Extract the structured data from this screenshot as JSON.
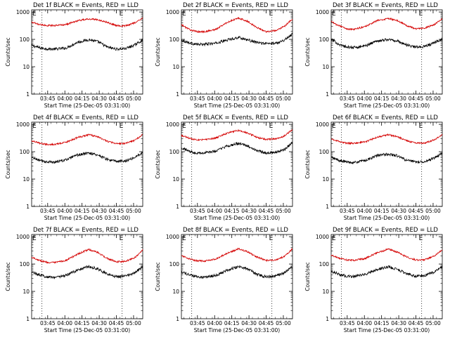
{
  "colors": {
    "events": "#000000",
    "lld": "#d40000",
    "axis": "#000000"
  },
  "common": {
    "ylabel": "Counts/sec",
    "xlabel": "Start Time (25-Dec-05 03:31:00)",
    "xticks": [
      "03:45",
      "04:00",
      "04:15",
      "04:30",
      "04:45",
      "05:00"
    ],
    "yticks": [
      "1",
      "10",
      "100",
      "1000"
    ],
    "e_marker": "E"
  },
  "chart_data": [
    {
      "type": "line",
      "title": "Det 1f BLACK = Events, RED = LLD",
      "yscale": "log",
      "ylim": [
        1,
        1200
      ],
      "x_range_min": [
        0,
        97
      ],
      "x_ticks_min": [
        14,
        29,
        44,
        59,
        74,
        89
      ],
      "dotted_lines_min": [
        9,
        79
      ],
      "series": [
        {
          "color": "#000000",
          "min": [
            0,
            8,
            14,
            20,
            30,
            40,
            50,
            58,
            66,
            74,
            82,
            90,
            97
          ],
          "values": [
            60,
            48,
            45,
            44,
            48,
            78,
            98,
            82,
            52,
            44,
            46,
            62,
            95
          ]
        },
        {
          "color": "#d40000",
          "min": [
            0,
            8,
            14,
            20,
            30,
            40,
            50,
            58,
            66,
            74,
            82,
            90,
            97
          ],
          "values": [
            420,
            340,
            320,
            320,
            350,
            480,
            560,
            520,
            420,
            320,
            310,
            400,
            620
          ]
        }
      ]
    },
    {
      "type": "line",
      "title": "Det 2f BLACK = Events, RED = LLD",
      "yscale": "log",
      "ylim": [
        1,
        1200
      ],
      "x_range_min": [
        0,
        97
      ],
      "x_ticks_min": [
        14,
        29,
        44,
        59,
        74,
        89
      ],
      "dotted_lines_min": [
        9,
        79
      ],
      "series": [
        {
          "color": "#000000",
          "min": [
            0,
            8,
            14,
            20,
            30,
            40,
            50,
            58,
            66,
            74,
            82,
            90,
            97
          ],
          "values": [
            95,
            72,
            65,
            66,
            72,
            95,
            118,
            95,
            76,
            70,
            72,
            95,
            160
          ]
        },
        {
          "color": "#d40000",
          "min": [
            0,
            8,
            14,
            20,
            30,
            40,
            50,
            58,
            66,
            74,
            82,
            90,
            97
          ],
          "values": [
            340,
            220,
            190,
            190,
            230,
            420,
            600,
            450,
            270,
            190,
            210,
            300,
            560
          ]
        }
      ]
    },
    {
      "type": "line",
      "title": "Det 3f BLACK = Events, RED = LLD",
      "yscale": "log",
      "ylim": [
        1,
        1200
      ],
      "x_range_min": [
        0,
        97
      ],
      "x_ticks_min": [
        14,
        29,
        44,
        59,
        74,
        89
      ],
      "dotted_lines_min": [
        9,
        79
      ],
      "series": [
        {
          "color": "#000000",
          "min": [
            0,
            8,
            14,
            20,
            30,
            40,
            50,
            58,
            66,
            74,
            82,
            90,
            97
          ],
          "values": [
            100,
            62,
            52,
            50,
            58,
            88,
            100,
            86,
            62,
            52,
            55,
            75,
            105
          ]
        },
        {
          "color": "#d40000",
          "min": [
            0,
            8,
            14,
            20,
            30,
            40,
            50,
            58,
            66,
            74,
            82,
            90,
            97
          ],
          "values": [
            440,
            300,
            240,
            230,
            300,
            480,
            580,
            480,
            320,
            240,
            260,
            350,
            560
          ]
        }
      ]
    },
    {
      "type": "line",
      "title": "Det 4f BLACK = Events, RED = LLD",
      "yscale": "log",
      "ylim": [
        1,
        1200
      ],
      "x_range_min": [
        0,
        97
      ],
      "x_ticks_min": [
        14,
        29,
        44,
        59,
        74,
        89
      ],
      "dotted_lines_min": [
        9,
        79
      ],
      "series": [
        {
          "color": "#000000",
          "min": [
            0,
            8,
            14,
            20,
            30,
            40,
            50,
            58,
            66,
            74,
            82,
            90,
            97
          ],
          "values": [
            62,
            46,
            42,
            42,
            50,
            75,
            90,
            76,
            52,
            44,
            46,
            62,
            95
          ]
        },
        {
          "color": "#d40000",
          "min": [
            0,
            8,
            14,
            20,
            30,
            40,
            50,
            58,
            66,
            74,
            82,
            90,
            97
          ],
          "values": [
            250,
            200,
            185,
            185,
            220,
            330,
            420,
            350,
            240,
            195,
            200,
            260,
            420
          ]
        }
      ]
    },
    {
      "type": "line",
      "title": "Det 5f BLACK = Events, RED = LLD",
      "yscale": "log",
      "ylim": [
        1,
        1200
      ],
      "x_range_min": [
        0,
        97
      ],
      "x_ticks_min": [
        14,
        29,
        44,
        59,
        74,
        89
      ],
      "dotted_lines_min": [
        9,
        79
      ],
      "series": [
        {
          "color": "#000000",
          "min": [
            0,
            8,
            14,
            20,
            30,
            40,
            50,
            58,
            66,
            74,
            82,
            90,
            97
          ],
          "values": [
            140,
            100,
            90,
            90,
            105,
            160,
            200,
            160,
            110,
            90,
            95,
            120,
            210
          ]
        },
        {
          "color": "#d40000",
          "min": [
            0,
            8,
            14,
            20,
            30,
            40,
            50,
            58,
            66,
            74,
            82,
            90,
            97
          ],
          "values": [
            400,
            300,
            275,
            275,
            320,
            480,
            600,
            480,
            330,
            280,
            290,
            380,
            640
          ]
        }
      ]
    },
    {
      "type": "line",
      "title": "Det 6f BLACK = Events, RED = LLD",
      "yscale": "log",
      "ylim": [
        1,
        1200
      ],
      "x_range_min": [
        0,
        97
      ],
      "x_ticks_min": [
        14,
        29,
        44,
        59,
        74,
        89
      ],
      "dotted_lines_min": [
        9,
        79
      ],
      "series": [
        {
          "color": "#000000",
          "min": [
            0,
            8,
            14,
            20,
            30,
            40,
            50,
            58,
            66,
            74,
            82,
            90,
            97
          ],
          "values": [
            62,
            46,
            42,
            40,
            48,
            72,
            82,
            70,
            48,
            42,
            44,
            58,
            90
          ]
        },
        {
          "color": "#d40000",
          "min": [
            0,
            8,
            14,
            20,
            30,
            40,
            50,
            58,
            66,
            74,
            82,
            90,
            97
          ],
          "values": [
            290,
            225,
            205,
            200,
            230,
            340,
            420,
            350,
            250,
            205,
            210,
            270,
            420
          ]
        }
      ]
    },
    {
      "type": "line",
      "title": "Det 7f BLACK = Events, RED = LLD",
      "yscale": "log",
      "ylim": [
        1,
        1200
      ],
      "x_range_min": [
        0,
        97
      ],
      "x_ticks_min": [
        14,
        29,
        44,
        59,
        74,
        89
      ],
      "dotted_lines_min": [
        9,
        79
      ],
      "series": [
        {
          "color": "#000000",
          "min": [
            0,
            8,
            14,
            20,
            30,
            40,
            50,
            58,
            66,
            74,
            82,
            90,
            97
          ],
          "values": [
            52,
            38,
            34,
            33,
            38,
            60,
            82,
            66,
            42,
            34,
            36,
            48,
            80
          ]
        },
        {
          "color": "#d40000",
          "min": [
            0,
            8,
            14,
            20,
            30,
            40,
            50,
            58,
            66,
            74,
            82,
            90,
            97
          ],
          "values": [
            180,
            130,
            115,
            112,
            135,
            230,
            340,
            260,
            160,
            120,
            125,
            170,
            330
          ]
        }
      ]
    },
    {
      "type": "line",
      "title": "Det 8f BLACK = Events, RED = LLD",
      "yscale": "log",
      "ylim": [
        1,
        1200
      ],
      "x_range_min": [
        0,
        97
      ],
      "x_ticks_min": [
        14,
        29,
        44,
        59,
        74,
        89
      ],
      "dotted_lines_min": [
        9,
        79
      ],
      "series": [
        {
          "color": "#000000",
          "min": [
            0,
            8,
            14,
            20,
            30,
            40,
            50,
            58,
            66,
            74,
            82,
            90,
            97
          ],
          "values": [
            52,
            38,
            34,
            33,
            38,
            60,
            82,
            66,
            42,
            34,
            36,
            48,
            80
          ]
        },
        {
          "color": "#d40000",
          "min": [
            0,
            8,
            14,
            20,
            30,
            40,
            50,
            58,
            66,
            74,
            82,
            90,
            97
          ],
          "values": [
            200,
            150,
            130,
            128,
            150,
            250,
            360,
            280,
            180,
            135,
            140,
            190,
            360
          ]
        }
      ]
    },
    {
      "type": "line",
      "title": "Det 9f BLACK = Events, RED = LLD",
      "yscale": "log",
      "ylim": [
        1,
        1200
      ],
      "x_range_min": [
        0,
        97
      ],
      "x_ticks_min": [
        14,
        29,
        44,
        59,
        74,
        89
      ],
      "dotted_lines_min": [
        9,
        79
      ],
      "series": [
        {
          "color": "#000000",
          "min": [
            0,
            8,
            14,
            20,
            30,
            40,
            50,
            58,
            66,
            74,
            82,
            90,
            97
          ],
          "values": [
            55,
            40,
            36,
            35,
            42,
            62,
            80,
            64,
            44,
            36,
            38,
            52,
            82
          ]
        },
        {
          "color": "#d40000",
          "min": [
            0,
            8,
            14,
            20,
            30,
            40,
            50,
            58,
            66,
            74,
            82,
            90,
            97
          ],
          "values": [
            210,
            160,
            140,
            138,
            160,
            260,
            350,
            270,
            180,
            140,
            145,
            195,
            340
          ]
        }
      ]
    }
  ]
}
